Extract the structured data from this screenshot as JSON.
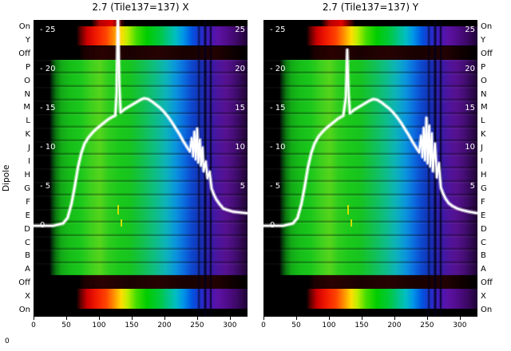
{
  "figure": {
    "corner_label": "0"
  },
  "chart_data": {
    "type": "heatmap",
    "description": "Two dipole-test spectrogram panels (X and Y polarisation) for Tile137: jet-colormap heatmap of power vs frequency channel per dipole state row, with white overlaid bandpass power traces (dB scale drawn inside panels).",
    "ylabel": "Dipole",
    "row_labels": [
      "On",
      "Y",
      "Off",
      "P",
      "O",
      "N",
      "M",
      "L",
      "K",
      "J",
      "I",
      "H",
      "G",
      "F",
      "E",
      "D",
      "C",
      "B",
      "A",
      "Off",
      "X",
      "On"
    ],
    "x_ticks": [
      0,
      50,
      100,
      150,
      200,
      250,
      300
    ],
    "x_range": [
      0,
      327
    ],
    "db_ticks": [
      25,
      20,
      15,
      10,
      5,
      0
    ],
    "colormap": "jet-like: black, red, yellow, green, cyan, blue, purple",
    "legend": "white line = bandpass power (dB) vs channel",
    "artifacts": [
      {
        "x_pct": 39,
        "y": 232,
        "h": 12
      },
      {
        "x_pct": 40.5,
        "y": 250,
        "h": 9
      }
    ],
    "panels": [
      {
        "title": "2.7 (Tile137=137) X",
        "line_db_vs_channel": [
          [
            0,
            0
          ],
          [
            30,
            0
          ],
          [
            45,
            0.3
          ],
          [
            52,
            1
          ],
          [
            58,
            2.8
          ],
          [
            63,
            5
          ],
          [
            68,
            7.5
          ],
          [
            73,
            9.3
          ],
          [
            78,
            10.5
          ],
          [
            84,
            11.3
          ],
          [
            90,
            11.9
          ],
          [
            96,
            12.4
          ],
          [
            102,
            12.8
          ],
          [
            108,
            13.2
          ],
          [
            114,
            13.6
          ],
          [
            120,
            13.9
          ],
          [
            125,
            14.1
          ],
          [
            127,
            17
          ],
          [
            129,
            28
          ],
          [
            131,
            18
          ],
          [
            133,
            14.5
          ],
          [
            139,
            14.9
          ],
          [
            145,
            15.2
          ],
          [
            151,
            15.5
          ],
          [
            157,
            15.8
          ],
          [
            163,
            16.1
          ],
          [
            169,
            16.3
          ],
          [
            175,
            16.2
          ],
          [
            181,
            15.9
          ],
          [
            187,
            15.5
          ],
          [
            193,
            15.1
          ],
          [
            199,
            14.6
          ],
          [
            205,
            14
          ],
          [
            211,
            13.3
          ],
          [
            217,
            12.5
          ],
          [
            223,
            11.7
          ],
          [
            229,
            10.8
          ],
          [
            235,
            10
          ],
          [
            239,
            9.5
          ],
          [
            242,
            11.2
          ],
          [
            244,
            8.9
          ],
          [
            246,
            12
          ],
          [
            248,
            8.5
          ],
          [
            250,
            12.4
          ],
          [
            252,
            8.1
          ],
          [
            254,
            11
          ],
          [
            256,
            7.7
          ],
          [
            258,
            10
          ],
          [
            260,
            7
          ],
          [
            263,
            8.2
          ],
          [
            266,
            6.1
          ],
          [
            269,
            6.9
          ],
          [
            272,
            4.8
          ],
          [
            275,
            4.1
          ],
          [
            279,
            3.4
          ],
          [
            284,
            2.8
          ],
          [
            290,
            2.2
          ],
          [
            297,
            2
          ],
          [
            305,
            1.8
          ],
          [
            315,
            1.7
          ],
          [
            327,
            1.6
          ]
        ]
      },
      {
        "title": "2.7 (Tile137=137) Y",
        "line_db_vs_channel": [
          [
            0,
            0
          ],
          [
            30,
            0
          ],
          [
            45,
            0.3
          ],
          [
            52,
            1
          ],
          [
            58,
            2.8
          ],
          [
            63,
            5
          ],
          [
            68,
            7.5
          ],
          [
            73,
            9.3
          ],
          [
            78,
            10.5
          ],
          [
            84,
            11.4
          ],
          [
            90,
            12
          ],
          [
            96,
            12.5
          ],
          [
            102,
            12.9
          ],
          [
            108,
            13.3
          ],
          [
            114,
            13.7
          ],
          [
            118,
            13.9
          ],
          [
            122,
            14.1
          ],
          [
            126,
            16.5
          ],
          [
            128,
            22.5
          ],
          [
            130,
            17
          ],
          [
            132,
            14.4
          ],
          [
            138,
            14.8
          ],
          [
            144,
            15.1
          ],
          [
            150,
            15.4
          ],
          [
            156,
            15.7
          ],
          [
            162,
            16
          ],
          [
            168,
            16.2
          ],
          [
            174,
            16.1
          ],
          [
            180,
            15.8
          ],
          [
            186,
            15.4
          ],
          [
            192,
            15
          ],
          [
            198,
            14.5
          ],
          [
            204,
            13.9
          ],
          [
            210,
            13.2
          ],
          [
            216,
            12.4
          ],
          [
            222,
            11.6
          ],
          [
            228,
            10.7
          ],
          [
            234,
            9.9
          ],
          [
            238,
            9.4
          ],
          [
            241,
            11.5
          ],
          [
            243,
            8.8
          ],
          [
            245,
            12.5
          ],
          [
            247,
            8.4
          ],
          [
            249,
            13.8
          ],
          [
            251,
            8
          ],
          [
            253,
            12.8
          ],
          [
            255,
            7.6
          ],
          [
            257,
            11.8
          ],
          [
            259,
            7
          ],
          [
            262,
            10.5
          ],
          [
            265,
            6.2
          ],
          [
            268,
            8
          ],
          [
            271,
            4.9
          ],
          [
            274,
            4.2
          ],
          [
            278,
            3.5
          ],
          [
            283,
            2.9
          ],
          [
            289,
            2.5
          ],
          [
            296,
            2.2
          ],
          [
            304,
            2
          ],
          [
            314,
            1.8
          ],
          [
            327,
            1.6
          ]
        ]
      }
    ]
  }
}
